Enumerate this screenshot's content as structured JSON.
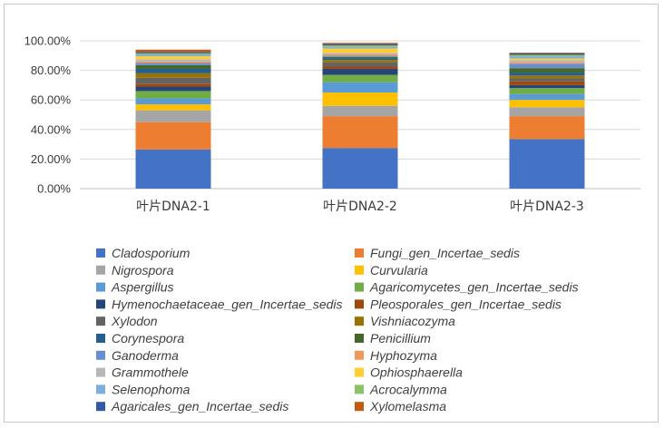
{
  "chart_data": {
    "type": "bar",
    "stacked": true,
    "categories": [
      "叶片DNA2-1",
      "叶片DNA2-2",
      "叶片DNA2-3"
    ],
    "ylim": [
      0,
      100
    ],
    "yticks": [
      "0.00%",
      "20.00%",
      "40.00%",
      "60.00%",
      "80.00%",
      "100.00%"
    ],
    "ytick_values": [
      0,
      20,
      40,
      60,
      80,
      100
    ],
    "grid": true,
    "legend_position": "bottom",
    "series": [
      {
        "name": "Cladosporium",
        "color": "#4472C4",
        "values": [
          26.5,
          27.5,
          33.5
        ]
      },
      {
        "name": "Fungi_gen_Incertae_sedis",
        "color": "#ED7D31",
        "values": [
          18.5,
          21.5,
          15.5
        ]
      },
      {
        "name": "Nigrospora",
        "color": "#A5A5A5",
        "values": [
          8.0,
          7.0,
          6.0
        ]
      },
      {
        "name": "Curvularia",
        "color": "#FFC000",
        "values": [
          4.0,
          9.0,
          5.0
        ]
      },
      {
        "name": "Aspergillus",
        "color": "#5B9BD5",
        "values": [
          4.0,
          7.0,
          4.0
        ]
      },
      {
        "name": "Agaricomycetes_gen_Incertae_sedis",
        "color": "#70AD47",
        "values": [
          5.0,
          5.0,
          4.0
        ]
      },
      {
        "name": "Hymenochaetaceae_gen_Incertae_sedis",
        "color": "#264478",
        "values": [
          3.0,
          4.0,
          2.0
        ]
      },
      {
        "name": "Pleosporales_gen_Incertae_sedis",
        "color": "#9E480E",
        "values": [
          2.0,
          1.5,
          2.5
        ]
      },
      {
        "name": "Xylodon",
        "color": "#636363",
        "values": [
          4.0,
          3.0,
          2.0
        ]
      },
      {
        "name": "Vishniacozyma",
        "color": "#997300",
        "values": [
          3.0,
          1.5,
          2.0
        ]
      },
      {
        "name": "Corynespora",
        "color": "#255E91",
        "values": [
          3.0,
          1.0,
          2.0
        ]
      },
      {
        "name": "Penicillium",
        "color": "#43682B",
        "values": [
          2.5,
          1.0,
          3.0
        ]
      },
      {
        "name": "Ganoderma",
        "color": "#698ED0",
        "values": [
          1.5,
          1.0,
          3.0
        ]
      },
      {
        "name": "Hyphozyma",
        "color": "#F1975A",
        "values": [
          1.0,
          0.8,
          1.0
        ]
      },
      {
        "name": "Grammothele",
        "color": "#B7B7B7",
        "values": [
          1.5,
          1.0,
          1.5
        ]
      },
      {
        "name": "Ophiosphaerella",
        "color": "#FFCD33",
        "values": [
          2.0,
          3.0,
          1.0
        ]
      },
      {
        "name": "Selenophoma",
        "color": "#7CAFDD",
        "values": [
          1.0,
          1.0,
          1.5
        ]
      },
      {
        "name": "Acrocalymma",
        "color": "#8CC168",
        "values": [
          1.0,
          1.0,
          1.0
        ]
      },
      {
        "name": "Agaricales_gen_Incertae_sedis",
        "color": "#335AA1",
        "values": [
          1.0,
          1.0,
          1.0
        ]
      },
      {
        "name": "Xylomelasma",
        "color": "#C55A11",
        "values": [
          1.5,
          0.8,
          0.5
        ]
      }
    ]
  }
}
